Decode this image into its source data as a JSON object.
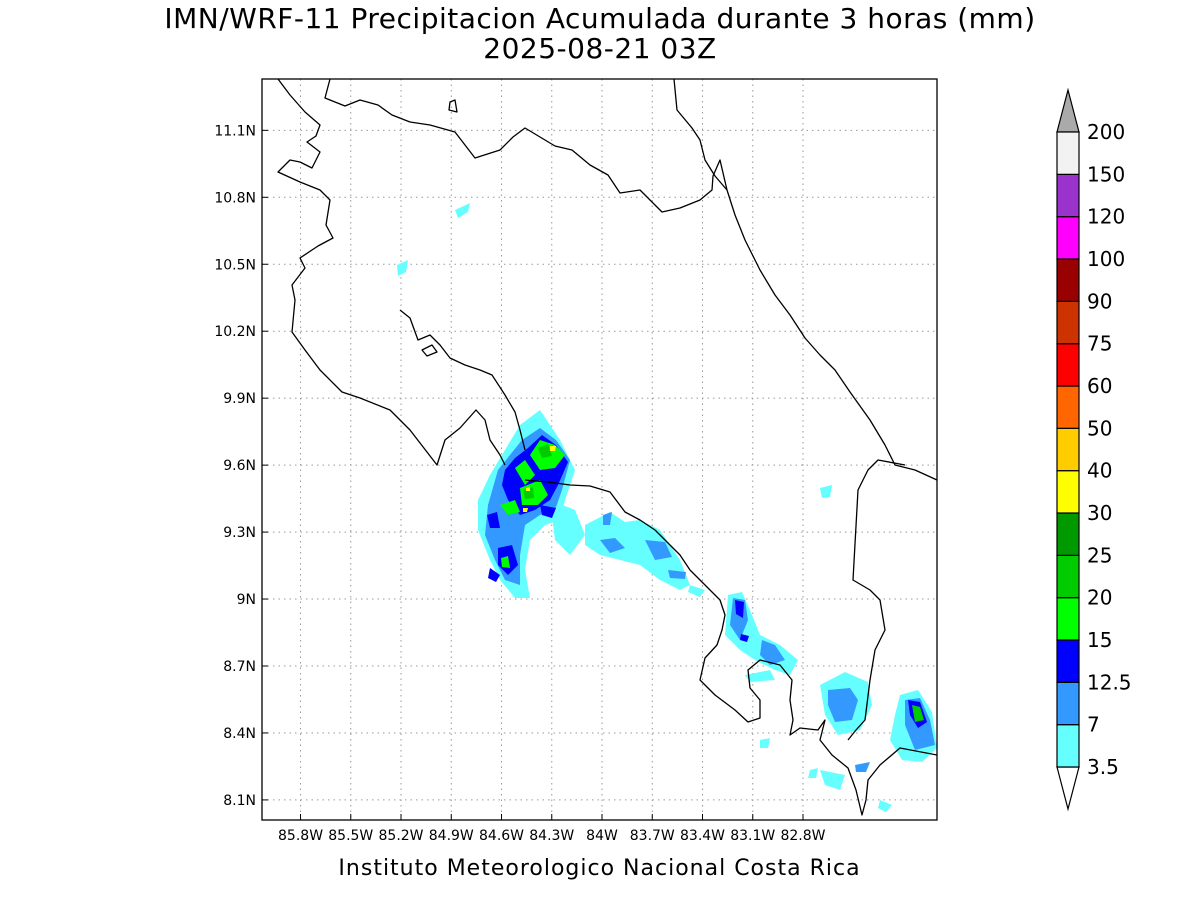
{
  "title": "IMN/WRF-11 Precipitacion Acumulada durante 3 horas (mm)",
  "subtitle": "2025-08-21 03Z",
  "credit": "Instituto Meteorologico Nacional Costa Rica",
  "map": {
    "lon_range": [
      -86.03,
      -82.0
    ],
    "lat_range": [
      8.01,
      11.33
    ],
    "lon_ticks": [
      {
        "value": -85.8,
        "label": "85.8W"
      },
      {
        "value": -85.5,
        "label": "85.5W"
      },
      {
        "value": -85.2,
        "label": "85.2W"
      },
      {
        "value": -84.9,
        "label": "84.9W"
      },
      {
        "value": -84.6,
        "label": "84.6W"
      },
      {
        "value": -84.3,
        "label": "84.3W"
      },
      {
        "value": -84.0,
        "label": "84W"
      },
      {
        "value": -83.7,
        "label": "83.7W"
      },
      {
        "value": -83.4,
        "label": "83.4W"
      },
      {
        "value": -83.1,
        "label": "83.1W"
      },
      {
        "value": -82.8,
        "label": "82.8W"
      }
    ],
    "lat_ticks": [
      {
        "value": 8.1,
        "label": "8.1N"
      },
      {
        "value": 8.4,
        "label": "8.4N"
      },
      {
        "value": 8.7,
        "label": "8.7N"
      },
      {
        "value": 9.0,
        "label": "9N"
      },
      {
        "value": 9.3,
        "label": "9.3N"
      },
      {
        "value": 9.6,
        "label": "9.6N"
      },
      {
        "value": 9.9,
        "label": "9.9N"
      },
      {
        "value": 10.2,
        "label": "10.2N"
      },
      {
        "value": 10.5,
        "label": "10.5N"
      },
      {
        "value": 10.8,
        "label": "10.8N"
      },
      {
        "value": 11.1,
        "label": "11.1N"
      }
    ],
    "grid": true
  },
  "colorbar": {
    "levels": [
      {
        "label": "3.5",
        "color": "#66ffff"
      },
      {
        "label": "7",
        "color": "#3399ff"
      },
      {
        "label": "12.5",
        "color": "#0000ff"
      },
      {
        "label": "15",
        "color": "#00ff00"
      },
      {
        "label": "20",
        "color": "#00cc00"
      },
      {
        "label": "25",
        "color": "#009900"
      },
      {
        "label": "30",
        "color": "#ffff00"
      },
      {
        "label": "40",
        "color": "#ffcc00"
      },
      {
        "label": "50",
        "color": "#ff6600"
      },
      {
        "label": "60",
        "color": "#ff0000"
      },
      {
        "label": "75",
        "color": "#cc3300"
      },
      {
        "label": "90",
        "color": "#990000"
      },
      {
        "label": "100",
        "color": "#ff00ff"
      },
      {
        "label": "120",
        "color": "#9933cc"
      },
      {
        "label": "150",
        "color": "#f2f2f2"
      },
      {
        "label": "200",
        "color": "#aaaaaa"
      }
    ]
  }
}
